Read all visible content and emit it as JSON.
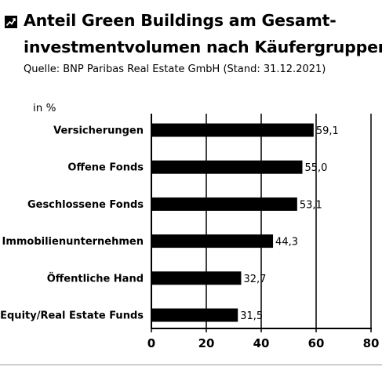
{
  "header": {
    "title_line1": "Anteil Green Buildings am Gesamt-",
    "title_line2": "investmentvolumen nach Käufergruppen",
    "source": "Quelle: BNP Paribas Real Estate GmbH (Stand: 31.12.2021)"
  },
  "chart_data": {
    "type": "bar",
    "orientation": "horizontal",
    "title": "Anteil Green Buildings am Gesamtinvestmentvolumen nach Käufergruppen",
    "unit_label": "in %",
    "categories": [
      "Versicherungen",
      "Offene Fonds",
      "Geschlossene Fonds",
      "Immobilienunternehmen",
      "Öffentliche Hand",
      "Equity/Real Estate Funds"
    ],
    "values": [
      59.1,
      55.0,
      53.1,
      44.3,
      32.7,
      31.5
    ],
    "value_labels": [
      "59,1",
      "55,0",
      "53,1",
      "44,3",
      "32,7",
      "31,5"
    ],
    "xlim": [
      0,
      80
    ],
    "xticks": [
      "0",
      "20",
      "40",
      "60",
      "80"
    ],
    "grid": true,
    "colors": {
      "bar": "#000000",
      "grid": "#000000"
    }
  }
}
